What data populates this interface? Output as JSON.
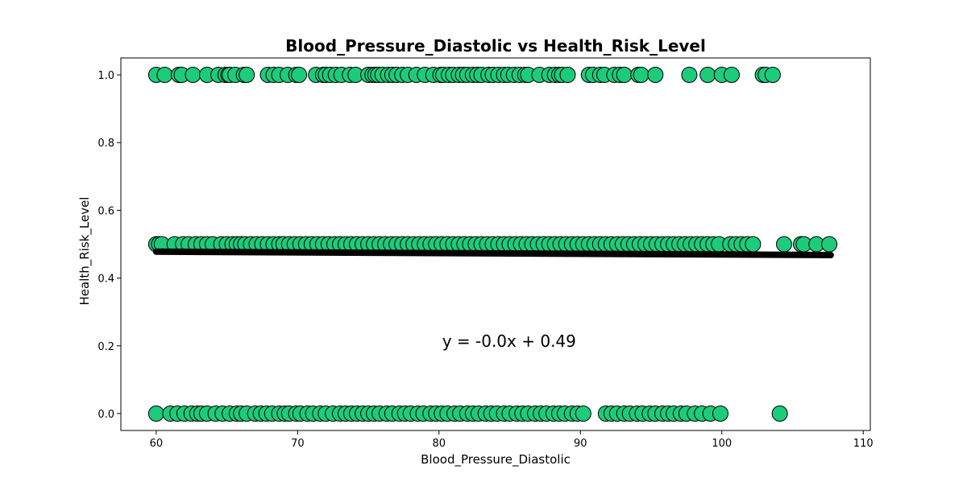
{
  "chart_data": {
    "type": "scatter",
    "title": "Blood_Pressure_Diastolic vs Health_Risk_Level",
    "xlabel": "Blood_Pressure_Diastolic",
    "ylabel": "Health_Risk_Level",
    "xlim": [
      57.5,
      110.5
    ],
    "ylim": [
      -0.05,
      1.05
    ],
    "xticks": [
      60,
      70,
      80,
      90,
      100,
      110
    ],
    "yticks": [
      0.0,
      0.2,
      0.4,
      0.6,
      0.8,
      1.0
    ],
    "xtick_labels": [
      "60",
      "70",
      "80",
      "90",
      "100",
      "110"
    ],
    "ytick_labels": [
      "0.0",
      "0.2",
      "0.4",
      "0.6",
      "0.8",
      "1.0"
    ],
    "grid": false,
    "marker_color": "#1ccc7a",
    "marker_edge_color": "#000000",
    "line_color": "#000000",
    "annotation": {
      "text": "y = -0.0x + 0.49",
      "x": 80,
      "y": 0.2
    },
    "regression_line": {
      "x": [
        60,
        107.7
      ],
      "y": [
        0.478,
        0.468
      ]
    },
    "series": [
      {
        "y": 1.0,
        "x": [
          60,
          60.6,
          61.6,
          61.8,
          62.6,
          63.6,
          64.4,
          64.9,
          65.1,
          65.2,
          65.6,
          66.2,
          66.4,
          67.9,
          68.3,
          68.7,
          69.3,
          69.9,
          70.1,
          71.3,
          71.8,
          72.0,
          72.3,
          72.7,
          73.1,
          73.7,
          74.1,
          75.0,
          75.3,
          75.5,
          75.7,
          76.0,
          76.4,
          76.7,
          77.0,
          77.4,
          77.8,
          78.4,
          79.0,
          79.6,
          80.1,
          80.3,
          80.7,
          81.0,
          81.4,
          81.7,
          82.0,
          82.4,
          82.7,
          83.0,
          83.5,
          83.8,
          84.2,
          84.6,
          84.9,
          85.3,
          85.7,
          86.1,
          86.3,
          87.1,
          87.8,
          88.2,
          88.5,
          88.7,
          89.1,
          90.6,
          90.9,
          91.4,
          91.7,
          92.4,
          92.8,
          93.1,
          94.1,
          94.3,
          95.3,
          97.7,
          99.0,
          100.0,
          100.7,
          102.9,
          103.1,
          103.6
        ]
      },
      {
        "y": 0.5,
        "x": [
          60,
          60.2,
          60.4,
          61.3,
          61.9,
          62.3,
          62.8,
          63.2,
          63.6,
          64.0,
          64.6,
          65.0,
          65.4,
          65.7,
          66.0,
          66.3,
          66.7,
          67.1,
          67.5,
          67.9,
          68.3,
          68.7,
          69.0,
          69.4,
          69.8,
          70.2,
          70.6,
          71.0,
          71.4,
          71.8,
          72.2,
          72.6,
          73.0,
          73.4,
          73.8,
          74.2,
          74.6,
          75.0,
          75.4,
          75.8,
          76.2,
          76.6,
          77.0,
          77.4,
          77.8,
          78.2,
          78.6,
          79.0,
          79.4,
          79.8,
          80.2,
          80.6,
          81.0,
          81.4,
          81.8,
          82.2,
          82.6,
          83.0,
          83.4,
          83.8,
          84.2,
          84.6,
          85.0,
          85.4,
          85.8,
          86.2,
          86.6,
          87.0,
          87.4,
          87.8,
          88.2,
          88.6,
          89.0,
          89.4,
          89.8,
          90.2,
          90.6,
          91.0,
          91.4,
          91.8,
          92.2,
          92.6,
          93.0,
          93.4,
          93.8,
          94.2,
          94.6,
          95.0,
          95.4,
          95.8,
          96.2,
          96.6,
          97.0,
          97.4,
          97.8,
          98.2,
          98.6,
          99.0,
          99.4,
          99.8,
          100.6,
          101.0,
          101.4,
          101.8,
          102.2,
          104.4,
          105.6,
          105.8,
          106.7,
          107.6
        ]
      },
      {
        "y": 0.0,
        "x": [
          60,
          61.0,
          61.5,
          62.0,
          62.5,
          62.9,
          63.2,
          63.6,
          64.2,
          64.7,
          65.2,
          65.7,
          66.0,
          66.4,
          67.0,
          67.4,
          67.8,
          68.2,
          68.7,
          69.1,
          69.4,
          69.9,
          70.2,
          70.7,
          71.1,
          71.6,
          72.0,
          72.5,
          73.0,
          73.4,
          73.8,
          74.2,
          74.6,
          75.0,
          75.4,
          75.8,
          76.3,
          76.7,
          77.2,
          77.6,
          78.0,
          78.5,
          78.9,
          79.4,
          79.8,
          80.2,
          80.6,
          81.1,
          81.5,
          82.0,
          82.4,
          82.8,
          83.3,
          83.7,
          84.1,
          84.6,
          85.0,
          85.5,
          85.9,
          86.3,
          86.8,
          87.2,
          87.6,
          88.1,
          88.5,
          88.9,
          89.4,
          89.8,
          90.2,
          91.8,
          92.2,
          92.6,
          93.1,
          93.5,
          94.0,
          94.4,
          94.9,
          95.3,
          95.8,
          96.2,
          96.6,
          97.1,
          97.5,
          98.1,
          98.6,
          99.2,
          99.9,
          104.1
        ]
      }
    ]
  }
}
